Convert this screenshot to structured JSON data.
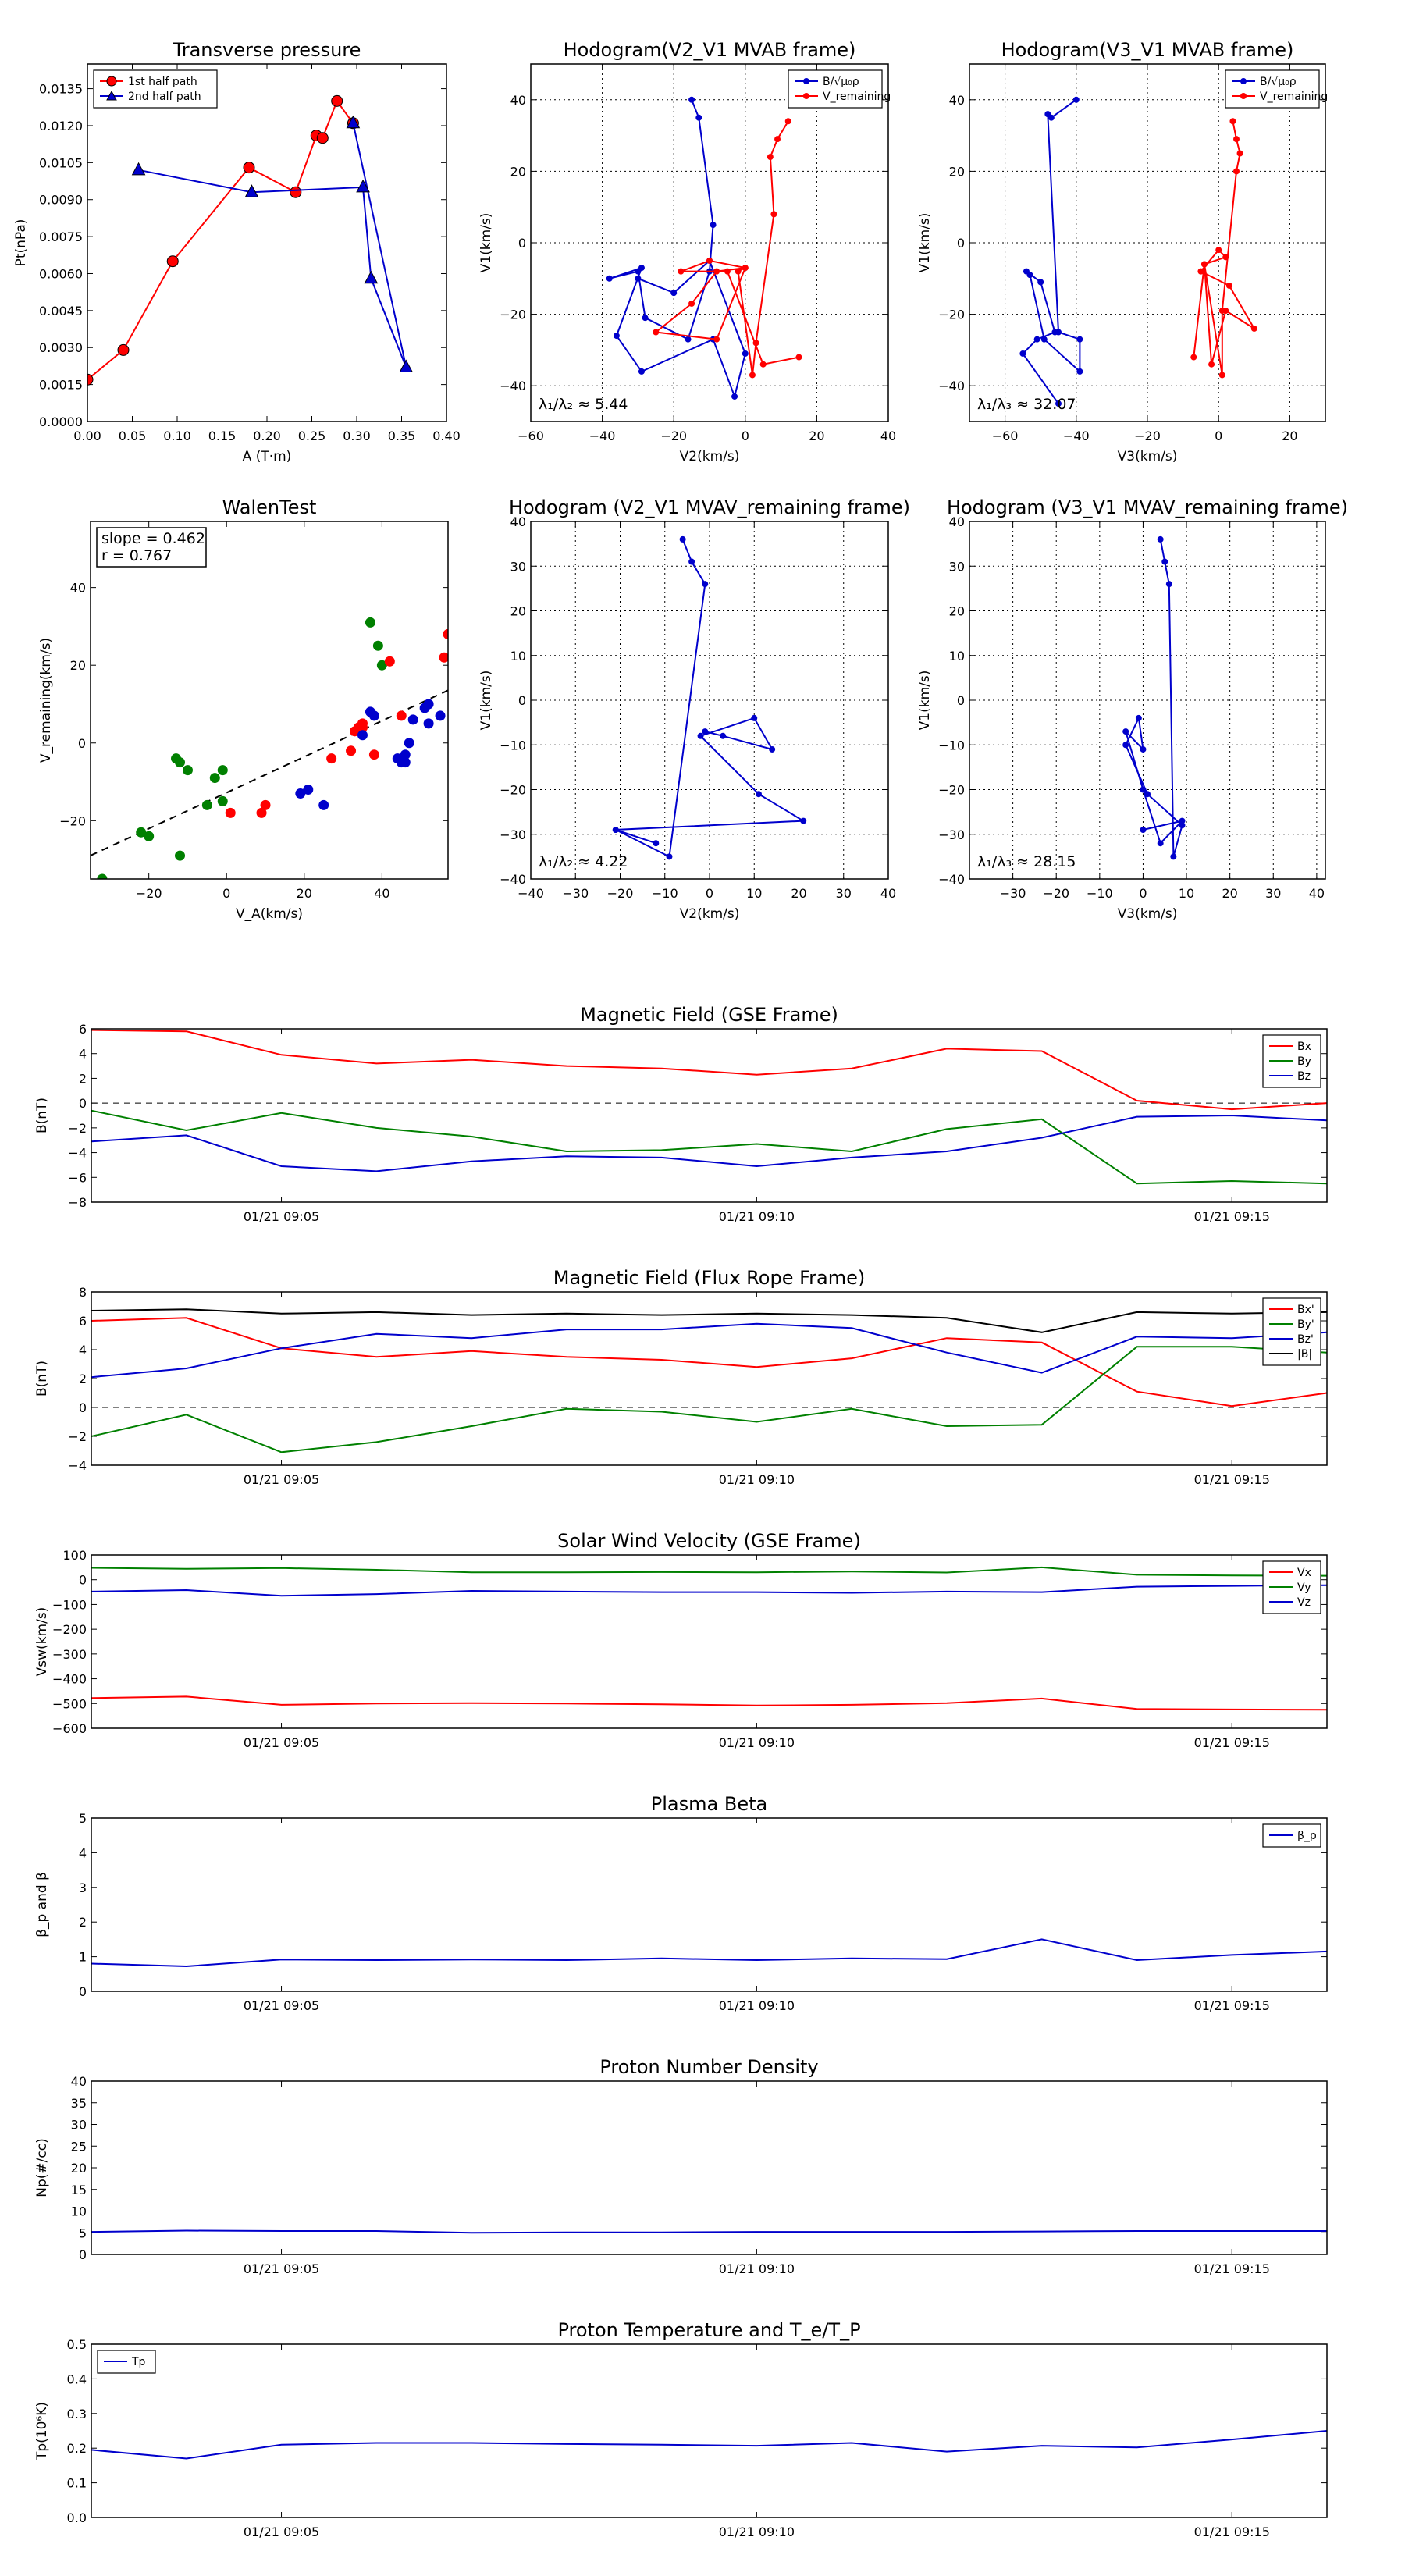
{
  "colors": {
    "red": "#ff0000",
    "blue": "#0000cc",
    "green": "#008000",
    "black": "#000000"
  },
  "chart_data": [
    {
      "id": "pt",
      "type": "scatter",
      "title": "Transverse pressure",
      "xlabel": "A (T·m)",
      "ylabel": "Pt(nPa)",
      "xlim": [
        0,
        0.4
      ],
      "ylim": [
        0,
        0.0145
      ],
      "xticks": [
        0,
        0.05,
        0.1,
        0.15,
        0.2,
        0.25,
        0.3,
        0.35,
        0.4
      ],
      "yticks": [
        0,
        0.0015,
        0.003,
        0.0045,
        0.006,
        0.0075,
        0.009,
        0.0105,
        0.012,
        0.0135
      ],
      "xtick_labels": [
        "0.00",
        "0.05",
        "0.10",
        "0.15",
        "0.20",
        "0.25",
        "0.30",
        "0.35",
        "0.40"
      ],
      "ytick_labels": [
        "0.0000",
        "0.0015",
        "0.0030",
        "0.0045",
        "0.0060",
        "0.0075",
        "0.0090",
        "0.0105",
        "0.0120",
        "0.0135"
      ],
      "legend_position": "top-left",
      "series": [
        {
          "name": "1st half path",
          "color": "red",
          "marker": "circle",
          "x": [
            0.0,
            0.04,
            0.095,
            0.18,
            0.232,
            0.255,
            0.262,
            0.278,
            0.296
          ],
          "y": [
            0.0017,
            0.0029,
            0.0065,
            0.0103,
            0.0093,
            0.0116,
            0.0115,
            0.013,
            0.0121
          ]
        },
        {
          "name": "2nd half path",
          "color": "blue",
          "marker": "triangle",
          "x": [
            0.057,
            0.183,
            0.307,
            0.316,
            0.355,
            0.296
          ],
          "y": [
            0.0102,
            0.0093,
            0.0095,
            0.0058,
            0.0022,
            0.0121
          ]
        }
      ]
    },
    {
      "id": "h1",
      "type": "line",
      "title": "Hodogram(V2_V1 MVAB frame)",
      "xlabel": "V2(km/s)",
      "ylabel": "V1(km/s)",
      "xlim": [
        -60,
        40
      ],
      "ylim": [
        -50,
        50
      ],
      "xticks": [
        -60,
        -40,
        -20,
        0,
        20,
        40
      ],
      "yticks": [
        -40,
        -20,
        0,
        20,
        40
      ],
      "legend_position": "top-right",
      "annotation": "λ₁/λ₂ ≈ 5.44",
      "series": [
        {
          "name": "B/√μ₀ρ",
          "color": "blue",
          "x": [
            -15,
            -13,
            -9,
            -10,
            -16,
            -28,
            -30,
            -38,
            -29,
            -36,
            -29,
            -9,
            -3,
            0,
            -10,
            -20,
            -30
          ],
          "y": [
            40,
            35,
            5,
            -8,
            -27,
            -21,
            -8,
            -10,
            -7,
            -26,
            -36,
            -27,
            -43,
            -31,
            -5,
            -14,
            -10
          ]
        },
        {
          "name": "V_remaining",
          "color": "red",
          "x": [
            12,
            9,
            7,
            8,
            3,
            2,
            -2,
            0,
            -8,
            -15,
            -25,
            -8,
            0,
            -10,
            -18,
            -5,
            5,
            15
          ],
          "y": [
            34,
            29,
            24,
            8,
            -28,
            -37,
            -8,
            -7,
            -8,
            -17,
            -25,
            -27,
            -7,
            -5,
            -8,
            -8,
            -34,
            -32
          ]
        }
      ]
    },
    {
      "id": "h2",
      "type": "line",
      "title": "Hodogram(V3_V1 MVAB frame)",
      "xlabel": "V3(km/s)",
      "ylabel": "V1(km/s)",
      "xlim": [
        -70,
        30
      ],
      "ylim": [
        -50,
        50
      ],
      "xticks": [
        -60,
        -40,
        -20,
        0,
        20
      ],
      "yticks": [
        -40,
        -20,
        0,
        20,
        40
      ],
      "legend_position": "top-right",
      "annotation": "λ₁/λ₃ ≈ 32.07",
      "series": [
        {
          "name": "B/√μ₀ρ",
          "color": "blue",
          "x": [
            -40,
            -47,
            -48,
            -45,
            -39,
            -39,
            -49,
            -53,
            -54,
            -50,
            -46,
            -51,
            -55,
            -45
          ],
          "y": [
            40,
            35,
            36,
            -25,
            -27,
            -36,
            -27,
            -9,
            -8,
            -11,
            -25,
            -27,
            -31,
            -45
          ]
        },
        {
          "name": "V_remaining",
          "color": "red",
          "x": [
            4,
            5,
            6,
            5,
            1,
            1,
            -4,
            2,
            0,
            -5,
            3,
            10,
            2,
            -2,
            -4,
            -7
          ],
          "y": [
            34,
            29,
            25,
            20,
            -19,
            -37,
            -6,
            -4,
            -2,
            -8,
            -12,
            -24,
            -19,
            -34,
            -6,
            -32
          ]
        }
      ]
    },
    {
      "id": "walen",
      "type": "scatter",
      "title": "WalenTest",
      "xlabel": "V_A(km/s)",
      "ylabel": "V_remaining(km/s)",
      "xlim": [
        -35,
        57
      ],
      "ylim": [
        -35,
        57
      ],
      "xticks": [
        -20,
        0,
        20,
        40
      ],
      "yticks": [
        -20,
        0,
        20,
        40
      ],
      "annotation_lines": [
        "slope = 0.462",
        "r = 0.767"
      ],
      "fit": {
        "slope": 0.462,
        "intercept": -12.8
      },
      "series": [
        {
          "name": "",
          "color": "green",
          "x": [
            -32,
            -22,
            -20,
            -13,
            -12,
            -12,
            -10,
            -5,
            -3,
            -1,
            -1,
            37,
            39,
            40
          ],
          "y": [
            -35,
            -23,
            -24,
            -4,
            -5,
            -29,
            -7,
            -16,
            -9,
            -7,
            -15,
            31,
            25,
            20
          ],
          "point_count": 14
        },
        {
          "name": "",
          "color": "red",
          "x": [
            1,
            9,
            10,
            27,
            32,
            33,
            34,
            35,
            35,
            38,
            42,
            45,
            57,
            56
          ],
          "y": [
            -18,
            -18,
            -16,
            -4,
            -2,
            3,
            4,
            5,
            4,
            -3,
            21,
            7,
            28,
            22
          ]
        },
        {
          "name": "",
          "color": "blue",
          "x": [
            19,
            21,
            25,
            35,
            37,
            38,
            44,
            45,
            46,
            46,
            47,
            48,
            51,
            52,
            52,
            55
          ],
          "y": [
            -13,
            -12,
            -16,
            2,
            8,
            7,
            -4,
            -5,
            -3,
            -5,
            0,
            6,
            9,
            5,
            10,
            7
          ]
        }
      ]
    },
    {
      "id": "h3",
      "type": "line",
      "title": "Hodogram (V2_V1 MVAV_remaining frame)",
      "xlabel": "V2(km/s)",
      "ylabel": "V1(km/s)",
      "xlim": [
        -40,
        40
      ],
      "ylim": [
        -40,
        40
      ],
      "xticks": [
        -40,
        -30,
        -20,
        -10,
        0,
        10,
        20,
        30,
        40
      ],
      "yticks": [
        -40,
        -30,
        -20,
        -10,
        0,
        10,
        20,
        30,
        40
      ],
      "annotation": "λ₁/λ₂ ≈ 4.22",
      "series": [
        {
          "name": "",
          "color": "blue",
          "x": [
            -6,
            -4,
            -1,
            -9,
            -21,
            21,
            11,
            -2,
            10,
            14,
            3,
            -1
          ],
          "y": [
            36,
            31,
            26,
            -35,
            -29,
            -27,
            -21,
            -8,
            -4,
            -11,
            -8,
            -7
          ]
        },
        {
          "name": "",
          "color": "blue",
          "x": [
            -21,
            -12
          ],
          "y": [
            -29,
            -32
          ]
        }
      ]
    },
    {
      "id": "h4",
      "type": "line",
      "title": "Hodogram (V3_V1 MVAV_remaining frame)",
      "xlabel": "V3(km/s)",
      "ylabel": "V1(km/s)",
      "xlim": [
        -40,
        42
      ],
      "ylim": [
        -40,
        40
      ],
      "xticks": [
        -30,
        -20,
        -10,
        0,
        10,
        20,
        30,
        40
      ],
      "yticks": [
        -40,
        -30,
        -20,
        -10,
        0,
        10,
        20,
        30,
        40
      ],
      "annotation": "λ₁/λ₃ ≈ 28.15",
      "series": [
        {
          "name": "",
          "color": "blue",
          "x": [
            4,
            5,
            6,
            7,
            9,
            1,
            -4,
            -1,
            0,
            -4,
            0,
            4,
            9,
            0
          ],
          "y": [
            36,
            31,
            26,
            -35,
            -28,
            -21,
            -10,
            -4,
            -11,
            -7,
            -20,
            -32,
            -27,
            -29
          ]
        }
      ]
    },
    {
      "id": "tsB",
      "type": "line",
      "title": "Magnetic Field (GSE Frame)",
      "ylabel": "B(nT)",
      "xtick_labels": [
        "01/21 09:05",
        "01/21 09:10",
        "01/21 09:15"
      ],
      "xtick_positions": [
        2,
        7,
        12
      ],
      "x": [
        0,
        1,
        2,
        3,
        4,
        5,
        6,
        7,
        8,
        9,
        10,
        11,
        12,
        13
      ],
      "ylim": [
        -8,
        6
      ],
      "yticks": [
        -8,
        -6,
        -4,
        -2,
        0,
        2,
        4,
        6
      ],
      "zero_line": true,
      "legend_position": "top-right",
      "series": [
        {
          "name": "Bx",
          "color": "red",
          "values": [
            5.9,
            5.8,
            3.9,
            3.2,
            3.5,
            3.0,
            2.8,
            2.3,
            2.8,
            4.4,
            4.2,
            0.2,
            -0.5,
            0.0
          ]
        },
        {
          "name": "By",
          "color": "green",
          "values": [
            -0.6,
            -2.2,
            -0.8,
            -2.0,
            -2.7,
            -3.9,
            -3.8,
            -3.3,
            -3.9,
            -2.1,
            -1.3,
            -6.5,
            -6.3,
            -6.5
          ]
        },
        {
          "name": "Bz",
          "color": "blue",
          "values": [
            -3.1,
            -2.6,
            -5.1,
            -5.5,
            -4.7,
            -4.3,
            -4.4,
            -5.1,
            -4.4,
            -3.9,
            -2.8,
            -1.1,
            -1.0,
            -1.4
          ]
        }
      ]
    },
    {
      "id": "tsF",
      "type": "line",
      "title": "Magnetic Field (Flux Rope Frame)",
      "ylabel": "B(nT)",
      "xtick_labels": [
        "01/21 09:05",
        "01/21 09:10",
        "01/21 09:15"
      ],
      "xtick_positions": [
        2,
        7,
        12
      ],
      "x": [
        0,
        1,
        2,
        3,
        4,
        5,
        6,
        7,
        8,
        9,
        10,
        11,
        12,
        13
      ],
      "ylim": [
        -4,
        8
      ],
      "yticks": [
        -4,
        -2,
        0,
        2,
        4,
        6,
        8
      ],
      "zero_line": true,
      "legend_position": "top-right",
      "series": [
        {
          "name": "Bx'",
          "color": "red",
          "values": [
            6.0,
            6.2,
            4.1,
            3.5,
            3.9,
            3.5,
            3.3,
            2.8,
            3.4,
            4.8,
            4.5,
            1.1,
            0.1,
            1.0
          ]
        },
        {
          "name": "By'",
          "color": "green",
          "values": [
            -2.0,
            -0.5,
            -3.1,
            -2.4,
            -1.3,
            -0.1,
            -0.3,
            -1.0,
            -0.1,
            -1.3,
            -1.2,
            4.2,
            4.2,
            3.8
          ]
        },
        {
          "name": "Bz'",
          "color": "blue",
          "values": [
            2.1,
            2.7,
            4.1,
            5.1,
            4.8,
            5.4,
            5.4,
            5.8,
            5.5,
            3.8,
            2.4,
            4.9,
            4.8,
            5.2
          ]
        },
        {
          "name": "|B|",
          "color": "black",
          "values": [
            6.7,
            6.8,
            6.5,
            6.6,
            6.4,
            6.5,
            6.4,
            6.5,
            6.4,
            6.2,
            5.2,
            6.6,
            6.5,
            6.6
          ]
        }
      ]
    },
    {
      "id": "tsV",
      "type": "line",
      "title": "Solar Wind Velocity (GSE Frame)",
      "ylabel": "Vsw(km/s)",
      "xtick_labels": [
        "01/21 09:05",
        "01/21 09:10",
        "01/21 09:15"
      ],
      "xtick_positions": [
        2,
        7,
        12
      ],
      "x": [
        0,
        1,
        2,
        3,
        4,
        5,
        6,
        7,
        8,
        9,
        10,
        11,
        12,
        13
      ],
      "ylim": [
        -600,
        100
      ],
      "yticks": [
        -600,
        -500,
        -400,
        -300,
        -200,
        -100,
        0,
        100
      ],
      "legend_position": "top-right",
      "series": [
        {
          "name": "Vx",
          "color": "red",
          "values": [
            -478,
            -472,
            -505,
            -500,
            -498,
            -500,
            -503,
            -508,
            -505,
            -498,
            -480,
            -522,
            -524,
            -525
          ]
        },
        {
          "name": "Vy",
          "color": "green",
          "values": [
            48,
            44,
            47,
            40,
            30,
            30,
            31,
            30,
            33,
            29,
            50,
            20,
            17,
            16
          ]
        },
        {
          "name": "Vz",
          "color": "blue",
          "values": [
            -48,
            -42,
            -65,
            -58,
            -45,
            -48,
            -50,
            -50,
            -53,
            -48,
            -50,
            -28,
            -25,
            -22
          ]
        }
      ]
    },
    {
      "id": "tsBeta",
      "type": "line",
      "title": "Plasma Beta",
      "ylabel": "β_p and β",
      "xtick_labels": [
        "01/21 09:05",
        "01/21 09:10",
        "01/21 09:15"
      ],
      "xtick_positions": [
        2,
        7,
        12
      ],
      "x": [
        0,
        1,
        2,
        3,
        4,
        5,
        6,
        7,
        8,
        9,
        10,
        11,
        12,
        13
      ],
      "ylim": [
        0,
        5
      ],
      "yticks": [
        0,
        1,
        2,
        3,
        4,
        5
      ],
      "legend_position": "top-right",
      "series": [
        {
          "name": "β_p",
          "color": "blue",
          "values": [
            0.8,
            0.72,
            0.92,
            0.9,
            0.92,
            0.9,
            0.95,
            0.9,
            0.95,
            0.93,
            1.5,
            0.9,
            1.05,
            1.15
          ]
        }
      ]
    },
    {
      "id": "tsN",
      "type": "line",
      "title": "Proton Number Density",
      "ylabel": "Np(#/cc)",
      "xtick_labels": [
        "01/21 09:05",
        "01/21 09:10",
        "01/21 09:15"
      ],
      "xtick_positions": [
        2,
        7,
        12
      ],
      "x": [
        0,
        1,
        2,
        3,
        4,
        5,
        6,
        7,
        8,
        9,
        10,
        11,
        12,
        13
      ],
      "ylim": [
        0,
        40
      ],
      "yticks": [
        0,
        5,
        10,
        15,
        20,
        25,
        30,
        35,
        40
      ],
      "series": [
        {
          "name": "",
          "color": "blue",
          "values": [
            5.2,
            5.5,
            5.4,
            5.4,
            5.0,
            5.1,
            5.1,
            5.2,
            5.2,
            5.2,
            5.3,
            5.4,
            5.4,
            5.4
          ]
        }
      ]
    },
    {
      "id": "tsT",
      "type": "line",
      "title": "Proton Temperature and T_e/T_P",
      "ylabel": "Tp(10⁶K)",
      "xtick_labels": [
        "01/21 09:05",
        "01/21 09:10",
        "01/21 09:15"
      ],
      "xtick_positions": [
        2,
        7,
        12
      ],
      "x": [
        0,
        1,
        2,
        3,
        4,
        5,
        6,
        7,
        8,
        9,
        10,
        11,
        12,
        13
      ],
      "ylim": [
        0,
        0.5
      ],
      "yticks": [
        0.0,
        0.1,
        0.2,
        0.3,
        0.4,
        0.5
      ],
      "ytick_labels": [
        "0.0",
        "0.1",
        "0.2",
        "0.3",
        "0.4",
        "0.5"
      ],
      "legend_position": "top-left",
      "series": [
        {
          "name": "Tp",
          "color": "blue",
          "values": [
            0.195,
            0.17,
            0.21,
            0.215,
            0.215,
            0.212,
            0.21,
            0.207,
            0.215,
            0.19,
            0.207,
            0.202,
            0.225,
            0.25
          ]
        }
      ]
    }
  ]
}
